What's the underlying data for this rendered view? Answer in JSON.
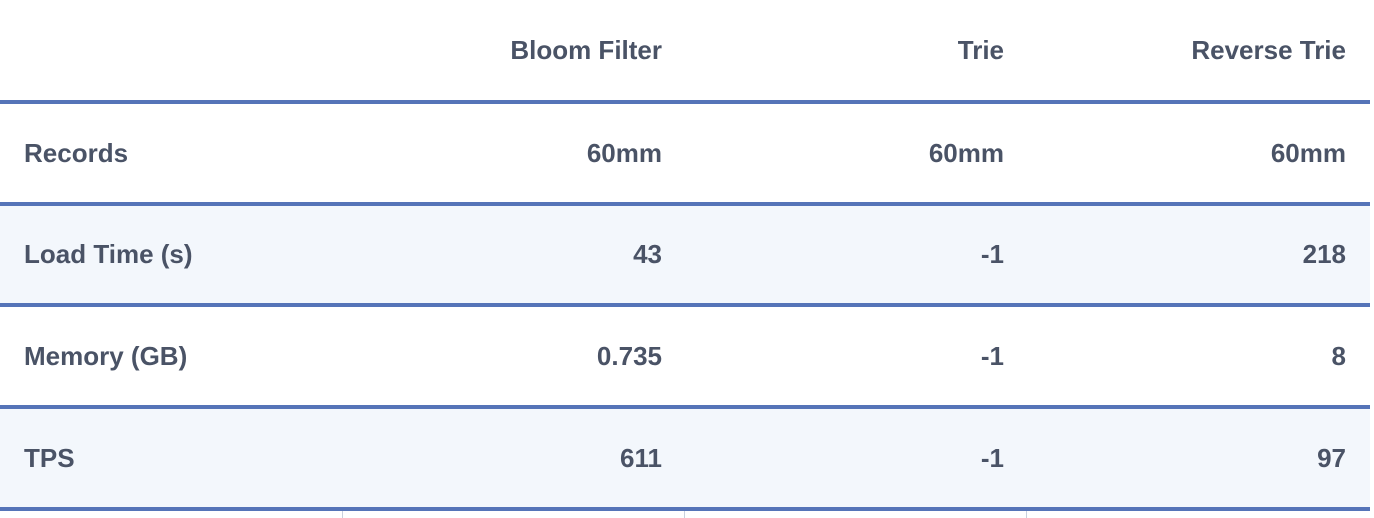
{
  "table": {
    "columns": [
      "",
      "Bloom Filter",
      "Trie",
      "Reverse Trie"
    ],
    "rows": [
      {
        "label": "Records",
        "values": [
          "60mm",
          "60mm",
          "60mm"
        ]
      },
      {
        "label": "Load Time (s)",
        "values": [
          "43",
          "-1",
          "218"
        ]
      },
      {
        "label": "Memory (GB)",
        "values": [
          "0.735",
          "-1",
          "8"
        ]
      },
      {
        "label": "TPS",
        "values": [
          "611",
          "-1",
          "97"
        ]
      }
    ]
  },
  "colors": {
    "text": "#4a5366",
    "rule": "#5574b8",
    "stripe": "#f3f7fc"
  }
}
